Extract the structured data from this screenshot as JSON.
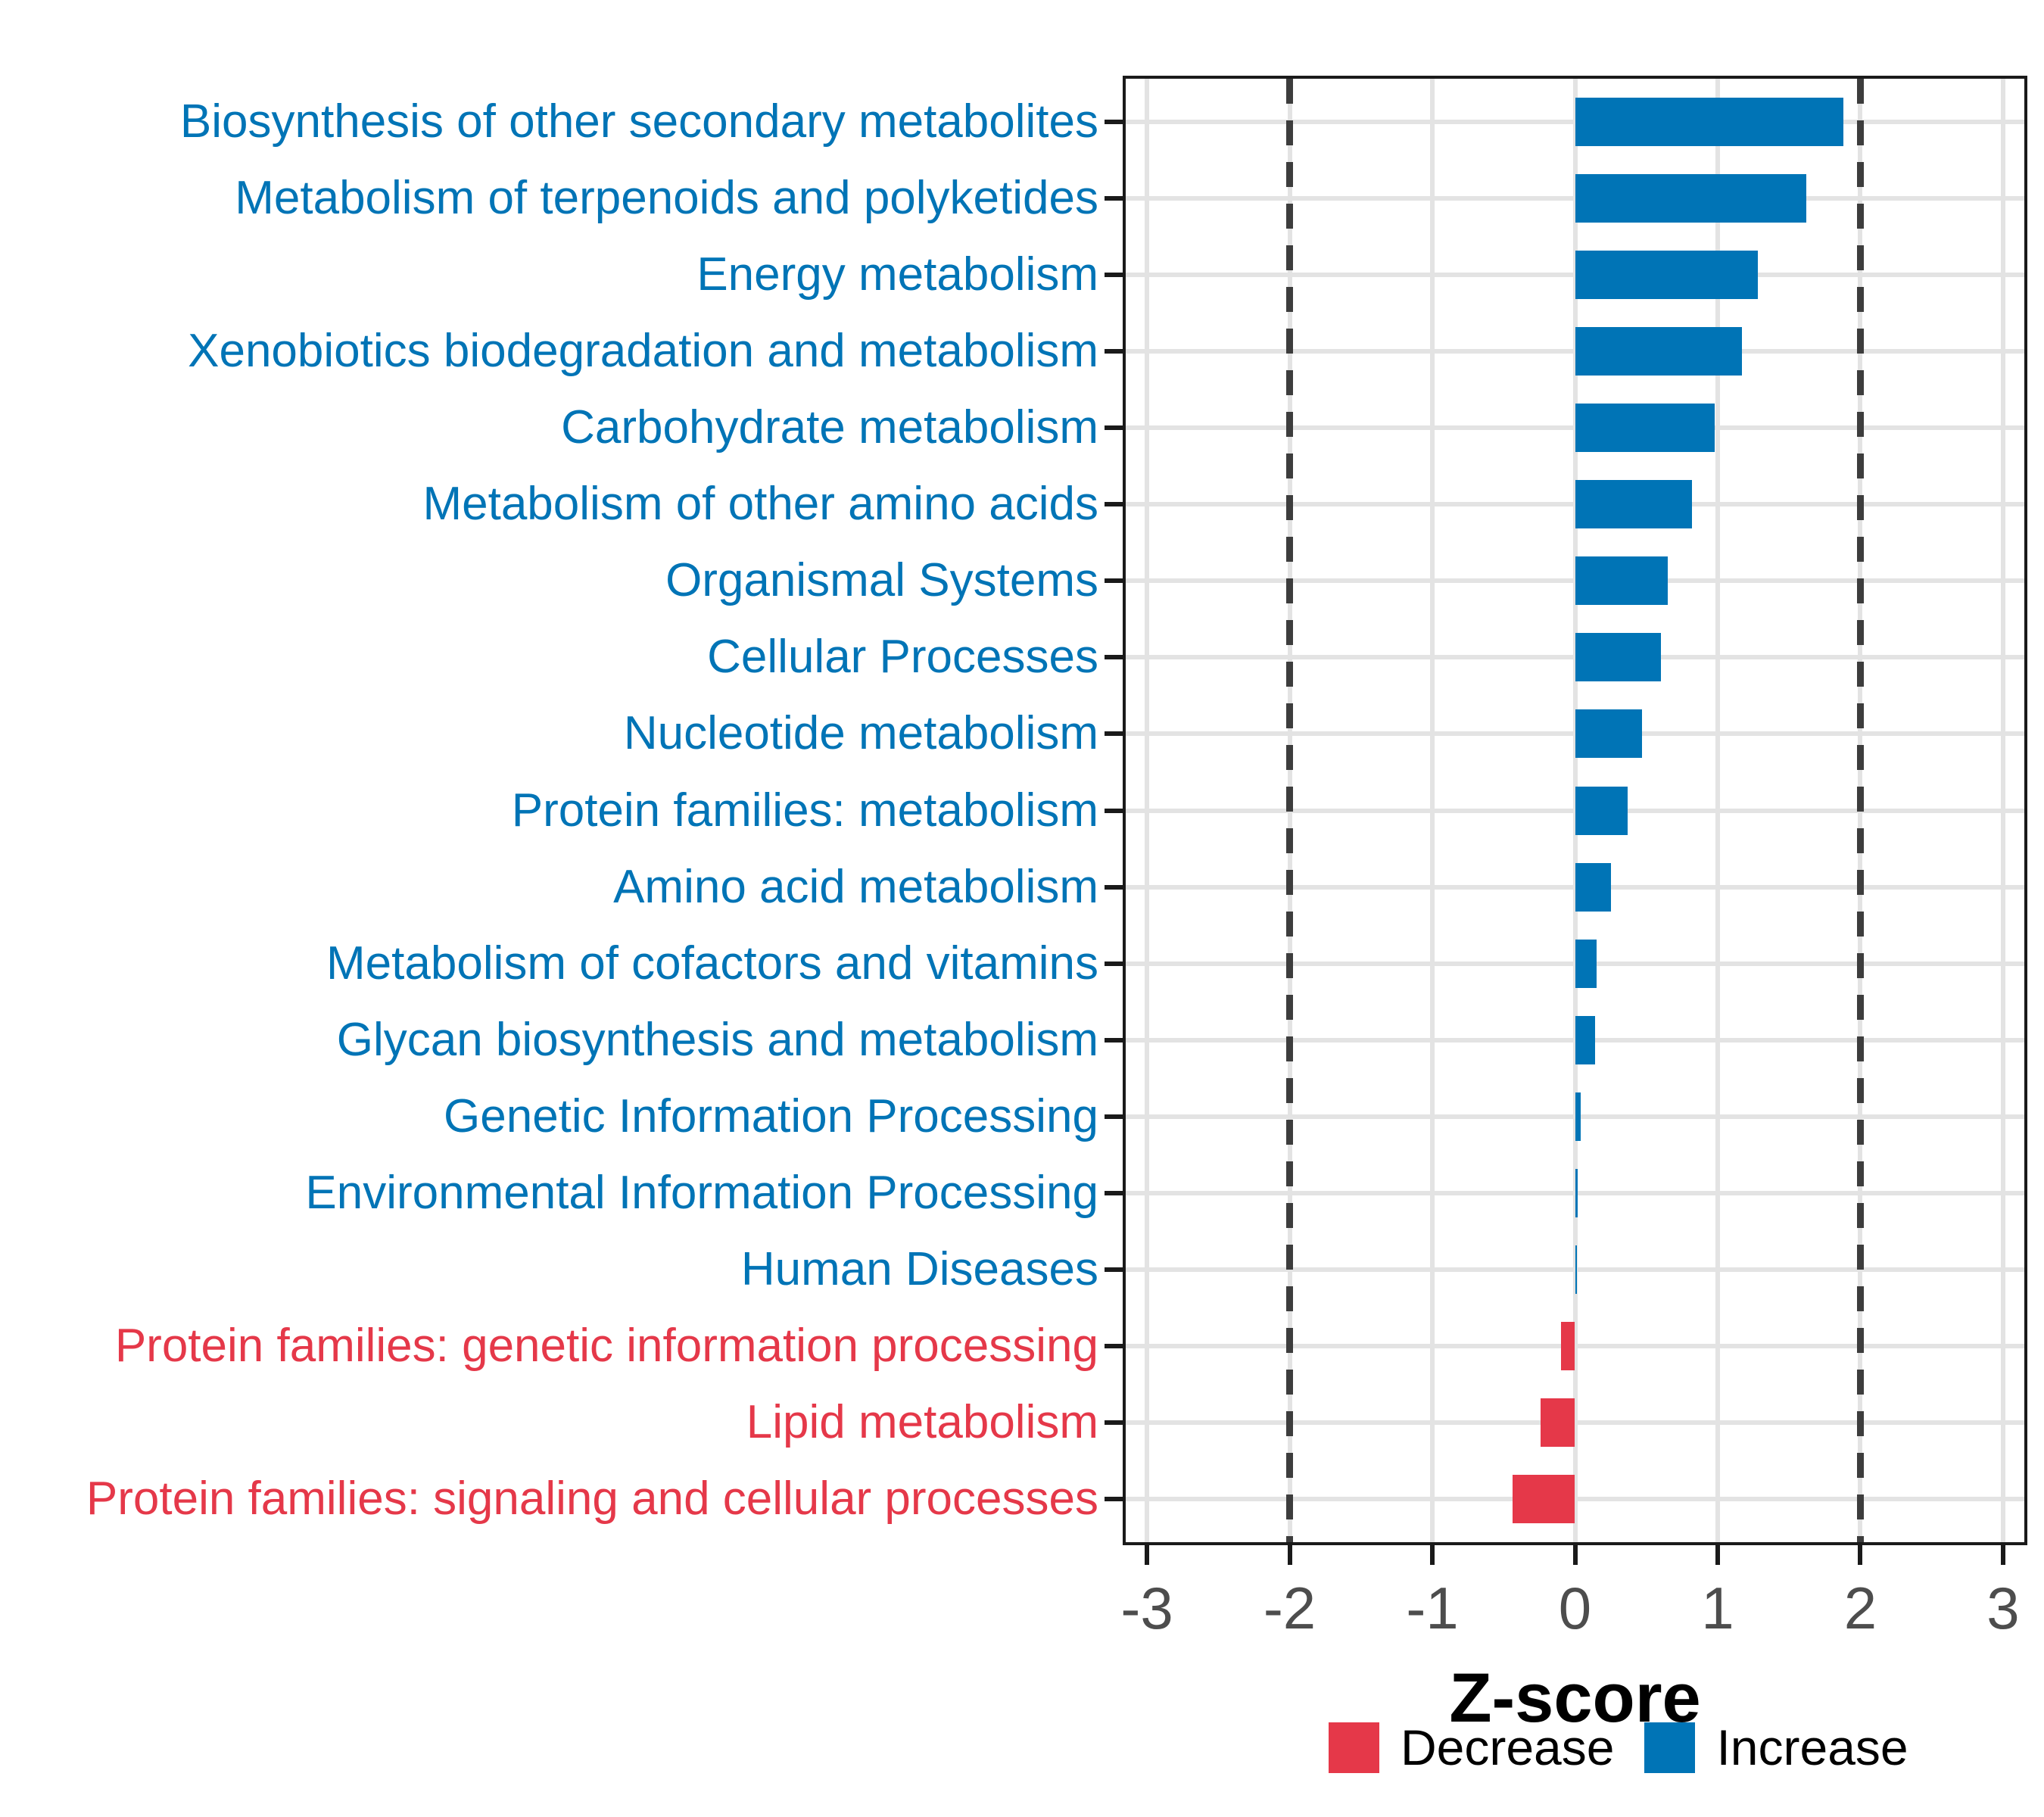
{
  "chart_data": {
    "type": "bar",
    "orientation": "horizontal",
    "title": "",
    "xlabel": "Z-score",
    "xlim": [
      -3.17,
      3.17
    ],
    "xticks": [
      -3,
      -2,
      -1,
      0,
      1,
      2,
      3
    ],
    "reference_lines": [
      -2,
      2
    ],
    "grid": true,
    "bar_group_field": "direction",
    "categories": [
      {
        "label": "Biosynthesis of other secondary metabolites",
        "value": 1.88,
        "direction": "increase"
      },
      {
        "label": "Metabolism of terpenoids and polyketides",
        "value": 1.62,
        "direction": "increase"
      },
      {
        "label": "Energy metabolism",
        "value": 1.28,
        "direction": "increase"
      },
      {
        "label": "Xenobiotics biodegradation and metabolism",
        "value": 1.17,
        "direction": "increase"
      },
      {
        "label": "Carbohydrate metabolism",
        "value": 0.98,
        "direction": "increase"
      },
      {
        "label": "Metabolism of other amino acids",
        "value": 0.82,
        "direction": "increase"
      },
      {
        "label": "Organismal Systems",
        "value": 0.65,
        "direction": "increase"
      },
      {
        "label": "Cellular Processes",
        "value": 0.6,
        "direction": "increase"
      },
      {
        "label": "Nucleotide metabolism",
        "value": 0.47,
        "direction": "increase"
      },
      {
        "label": "Protein families: metabolism",
        "value": 0.37,
        "direction": "increase"
      },
      {
        "label": "Amino acid metabolism",
        "value": 0.25,
        "direction": "increase"
      },
      {
        "label": "Metabolism of cofactors and vitamins",
        "value": 0.15,
        "direction": "increase"
      },
      {
        "label": "Glycan biosynthesis and metabolism",
        "value": 0.14,
        "direction": "increase"
      },
      {
        "label": "Genetic Information Processing",
        "value": 0.04,
        "direction": "increase"
      },
      {
        "label": "Environmental Information Processing",
        "value": 0.02,
        "direction": "increase"
      },
      {
        "label": "Human Diseases",
        "value": 0.015,
        "direction": "increase"
      },
      {
        "label": "Protein families: genetic information processing",
        "value": -0.1,
        "direction": "decrease"
      },
      {
        "label": "Lipid metabolism",
        "value": -0.24,
        "direction": "decrease"
      },
      {
        "label": "Protein families: signaling and cellular processes",
        "value": -0.44,
        "direction": "decrease"
      }
    ],
    "legend": {
      "position": "bottom",
      "items": [
        {
          "label": "Decrease",
          "direction": "decrease",
          "color": "#e53849"
        },
        {
          "label": "Increase",
          "direction": "increase",
          "color": "#0074b6"
        }
      ]
    }
  },
  "colors": {
    "increase": "#0074b6",
    "decrease": "#e53849",
    "grid": "#e3e3e3",
    "reference_line": "#3d3d3d",
    "tick_text": "#4d4d4d",
    "axis": "#1a1a1a",
    "text": "#000000"
  }
}
